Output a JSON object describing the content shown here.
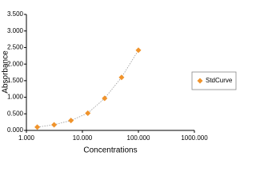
{
  "chart_data": {
    "type": "scatter",
    "x_label": "Concentrations",
    "y_label": "Absorbance",
    "x": [
      1.5625,
      3.125,
      6.25,
      12.5,
      25,
      50,
      100
    ],
    "series": [
      {
        "name": "StdCurve",
        "color": "#f0932b",
        "values": [
          0.1,
          0.17,
          0.3,
          0.52,
          0.97,
          1.6,
          2.42
        ]
      }
    ],
    "xlim": [
      1,
      1000
    ],
    "xticks": [
      {
        "value": 1,
        "label": "1.000"
      },
      {
        "value": 10,
        "label": "10.000"
      },
      {
        "value": 100,
        "label": "100.000"
      },
      {
        "value": 1000,
        "label": "1000.000"
      }
    ],
    "ylim": [
      0,
      3.5
    ],
    "yticks": [
      {
        "value": 0,
        "label": "0.000"
      },
      {
        "value": 0.5,
        "label": "0.500"
      },
      {
        "value": 1,
        "label": "1.000"
      },
      {
        "value": 1.5,
        "label": "1.500"
      },
      {
        "value": 2,
        "label": "2.000"
      },
      {
        "value": 2.5,
        "label": "2.500"
      },
      {
        "value": 3,
        "label": "3.000"
      },
      {
        "value": 3.5,
        "label": "3.500"
      }
    ],
    "x_scale": "log",
    "legend": "right",
    "trendline": true
  }
}
